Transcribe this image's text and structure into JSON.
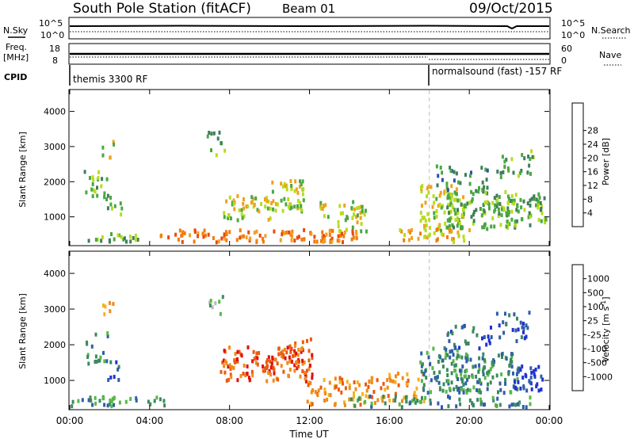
{
  "header": {
    "station": "South Pole Station (fitACF)",
    "beam": "Beam 01",
    "date": "09/Oct/2015"
  },
  "noise_panel": {
    "left_label": "N.Sky",
    "left_ticks": [
      "10^5",
      "10^0"
    ],
    "right_label": "N.Search",
    "right_ticks": [
      "10^5",
      "10^0"
    ]
  },
  "freq_panel": {
    "left_label_line1": "Freq.",
    "left_label_line2": "[MHz]",
    "left_ticks": [
      "18",
      "8"
    ],
    "right_label": "Nave",
    "right_ticks": [
      "60",
      "0"
    ]
  },
  "cpid_panel": {
    "label": "CPID",
    "segments": [
      {
        "text": "themis 3300 RF",
        "start_hour": 0
      },
      {
        "text": "normalsound (fast) -157 RF",
        "start_hour": 18
      }
    ]
  },
  "x_axis": {
    "label": "Time UT",
    "ticks": [
      "00:00",
      "04:00",
      "08:00",
      "12:00",
      "16:00",
      "20:00",
      "00:00"
    ],
    "tick_hours": [
      0,
      4,
      8,
      12,
      16,
      20,
      24
    ],
    "range_hours": [
      0,
      24
    ]
  },
  "colors": {
    "power": [
      "#0000ff",
      "#2c4fae",
      "#3d7f5a",
      "#49a840",
      "#b8dc1c",
      "#f1a020",
      "#f27b0a",
      "#ea4a0a",
      "#dd0a0a"
    ],
    "velocity": [
      "#e01010",
      "#ec5a10",
      "#f08a1c",
      "#f4b320",
      "#b8b8b8",
      "#57b846",
      "#3b8a5e",
      "#2f5ea8",
      "#2030d0"
    ]
  },
  "chart_data": [
    {
      "type": "heatmap",
      "name_panel": "power",
      "ylabel": "Slant Range [km]",
      "yticks": [
        1000,
        2000,
        3000,
        4000
      ],
      "ylim": [
        180,
        4600
      ],
      "xlim": [
        0,
        24
      ],
      "colorbar": {
        "label": "Power [dB]",
        "ticks": [
          "4",
          "8",
          "12",
          "16",
          "20",
          "24",
          "28"
        ],
        "range": [
          0,
          32
        ]
      },
      "marker_hour": 18,
      "blobs": [
        {
          "t": 1.3,
          "r": 1900,
          "dt": 0.6,
          "dr": 450,
          "v": 11,
          "d": 0.35
        },
        {
          "t": 2.2,
          "r": 1300,
          "dt": 0.4,
          "dr": 300,
          "v": 10,
          "d": 0.35
        },
        {
          "t": 1.9,
          "r": 2900,
          "dt": 0.3,
          "dr": 300,
          "v": 16,
          "d": 0.3
        },
        {
          "t": 7.3,
          "r": 3100,
          "dt": 0.5,
          "dr": 350,
          "v": 10,
          "d": 0.3
        },
        {
          "t": 8.8,
          "r": 1250,
          "dt": 1.2,
          "dr": 350,
          "v": 16,
          "d": 0.5
        },
        {
          "t": 10.8,
          "r": 1600,
          "dt": 0.9,
          "dr": 450,
          "v": 14,
          "d": 0.55
        },
        {
          "t": 12.8,
          "r": 1050,
          "dt": 0.3,
          "dr": 350,
          "v": 16,
          "d": 0.4
        },
        {
          "t": 14.0,
          "r": 1000,
          "dt": 0.8,
          "dr": 450,
          "v": 15,
          "d": 0.45
        },
        {
          "t": 18.6,
          "r": 1250,
          "dt": 1.1,
          "dr": 650,
          "v": 15,
          "d": 0.55
        },
        {
          "t": 20.6,
          "r": 1200,
          "dt": 1.8,
          "dr": 550,
          "v": 13,
          "d": 0.55
        },
        {
          "t": 22.8,
          "r": 1200,
          "dt": 1.0,
          "dr": 450,
          "v": 11,
          "d": 0.5
        },
        {
          "t": 19.6,
          "r": 2100,
          "dt": 1.3,
          "dr": 350,
          "v": 9,
          "d": 0.3
        },
        {
          "t": 22.3,
          "r": 2500,
          "dt": 1.0,
          "dr": 400,
          "v": 10,
          "d": 0.3
        },
        {
          "t": 9.5,
          "r": 450,
          "dt": 5.0,
          "dr": 180,
          "v": 22,
          "d": 0.55
        },
        {
          "t": 18.2,
          "r": 450,
          "dt": 1.8,
          "dr": 200,
          "v": 20,
          "d": 0.5
        },
        {
          "t": 2.0,
          "r": 400,
          "dt": 1.6,
          "dr": 120,
          "v": 12,
          "d": 0.5
        }
      ]
    },
    {
      "type": "heatmap",
      "name_panel": "velocity",
      "ylabel": "Slant Range [km]",
      "yticks": [
        1000,
        2000,
        3000,
        4000
      ],
      "ylim": [
        180,
        4600
      ],
      "xlim": [
        0,
        24
      ],
      "colorbar": {
        "label": "Velocity [m s^-1]",
        "ticks": [
          "-1000",
          "-500",
          "-100",
          "-25",
          "25",
          "100",
          "500",
          "1000"
        ]
      },
      "marker_hour": 18,
      "blobs": [
        {
          "t": 1.3,
          "r": 1900,
          "dt": 0.6,
          "dr": 450,
          "v": 6,
          "d": 0.3
        },
        {
          "t": 2.2,
          "r": 1300,
          "dt": 0.4,
          "dr": 300,
          "v": 7,
          "d": 0.3
        },
        {
          "t": 1.9,
          "r": 2900,
          "dt": 0.3,
          "dr": 300,
          "v": 2,
          "d": 0.3
        },
        {
          "t": 7.3,
          "r": 3100,
          "dt": 0.5,
          "dr": 300,
          "v": 5,
          "d": 0.25
        },
        {
          "t": 9.8,
          "r": 1450,
          "dt": 2.3,
          "dr": 480,
          "v": 1,
          "d": 0.55
        },
        {
          "t": 11.5,
          "r": 1800,
          "dt": 0.6,
          "dr": 350,
          "v": 1,
          "d": 0.5
        },
        {
          "t": 13.5,
          "r": 700,
          "dt": 1.8,
          "dr": 400,
          "v": 2,
          "d": 0.45
        },
        {
          "t": 16.5,
          "r": 800,
          "dt": 1.2,
          "dr": 400,
          "v": 2,
          "d": 0.4
        },
        {
          "t": 18.7,
          "r": 1300,
          "dt": 1.2,
          "dr": 650,
          "v": 6,
          "d": 0.5
        },
        {
          "t": 20.8,
          "r": 1200,
          "dt": 1.6,
          "dr": 550,
          "v": 6,
          "d": 0.55
        },
        {
          "t": 22.9,
          "r": 1050,
          "dt": 0.8,
          "dr": 350,
          "v": 8,
          "d": 0.55
        },
        {
          "t": 20.0,
          "r": 2200,
          "dt": 1.2,
          "dr": 350,
          "v": 7,
          "d": 0.3
        },
        {
          "t": 22.3,
          "r": 2500,
          "dt": 1.0,
          "dr": 400,
          "v": 7,
          "d": 0.3
        },
        {
          "t": 2.5,
          "r": 400,
          "dt": 2.5,
          "dr": 130,
          "v": 6,
          "d": 0.5
        },
        {
          "t": 18.5,
          "r": 400,
          "dt": 4.5,
          "dr": 150,
          "v": 6,
          "d": 0.45
        }
      ]
    }
  ]
}
